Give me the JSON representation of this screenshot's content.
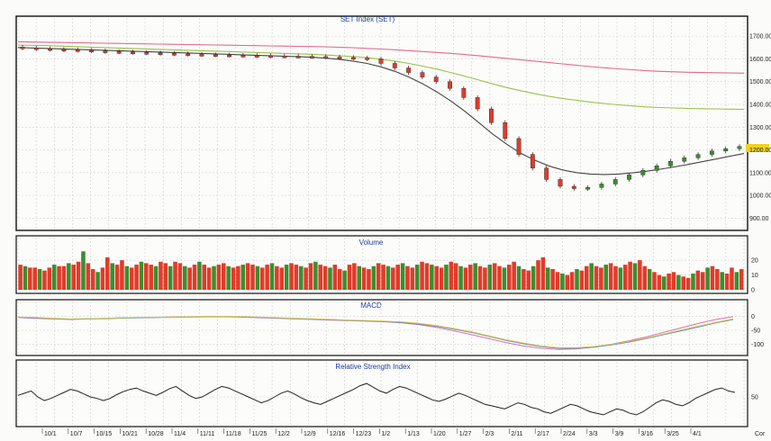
{
  "page": {
    "background": "#fbfbf9"
  },
  "chart_data": [
    {
      "type": "candlestick",
      "title": "SET Index (SET)",
      "y_ticks": [
        "1700.00",
        "1600.00",
        "1500.00",
        "1400.00",
        "1300.00",
        "1200.00",
        "1100.00",
        "1000.00",
        "900.00"
      ],
      "ylim": [
        870,
        1740
      ],
      "grid": true,
      "close_values": [
        1648,
        1645,
        1642,
        1640,
        1638,
        1635,
        1632,
        1630,
        1628,
        1626,
        1624,
        1622,
        1620,
        1618,
        1617,
        1616,
        1615,
        1614,
        1613,
        1612,
        1611,
        1610,
        1608,
        1606,
        1604,
        1600,
        1580,
        1560,
        1540,
        1520,
        1500,
        1470,
        1430,
        1380,
        1320,
        1250,
        1180,
        1120,
        1070,
        1040,
        1030,
        1035,
        1050,
        1070,
        1090,
        1110,
        1130,
        1150,
        1165,
        1180,
        1195,
        1205,
        1215
      ],
      "overlay_series": [
        {
          "color": "#e06a8a",
          "values": [
            1675,
            1674,
            1673,
            1672,
            1671,
            1670,
            1669,
            1668,
            1667,
            1666,
            1665,
            1664,
            1663,
            1662,
            1661,
            1660,
            1659,
            1658,
            1657,
            1656,
            1655,
            1654,
            1653,
            1651,
            1649,
            1646,
            1643,
            1640,
            1636,
            1632,
            1628,
            1624,
            1619,
            1614,
            1608,
            1602,
            1596,
            1590,
            1584,
            1578,
            1572,
            1566,
            1561,
            1556,
            1552,
            1548,
            1545,
            1543,
            1541,
            1540,
            1539,
            1538,
            1537
          ]
        },
        {
          "color": "#9ac24a",
          "values": [
            1660,
            1659,
            1658,
            1656,
            1654,
            1652,
            1650,
            1648,
            1646,
            1644,
            1642,
            1640,
            1638,
            1636,
            1634,
            1632,
            1630,
            1628,
            1626,
            1624,
            1622,
            1620,
            1617,
            1614,
            1610,
            1605,
            1598,
            1590,
            1580,
            1568,
            1555,
            1540,
            1524,
            1507,
            1490,
            1474,
            1460,
            1447,
            1436,
            1426,
            1418,
            1410,
            1404,
            1398,
            1393,
            1389,
            1386,
            1384,
            1382,
            1381,
            1380,
            1379,
            1378
          ]
        },
        {
          "color": "#444444",
          "values": [
            1650,
            1648,
            1646,
            1644,
            1642,
            1640,
            1638,
            1636,
            1634,
            1632,
            1630,
            1628,
            1626,
            1624,
            1622,
            1620,
            1618,
            1616,
            1614,
            1612,
            1610,
            1607,
            1603,
            1598,
            1590,
            1580,
            1565,
            1545,
            1520,
            1490,
            1455,
            1415,
            1370,
            1320,
            1270,
            1225,
            1185,
            1155,
            1130,
            1112,
            1100,
            1094,
            1092,
            1094,
            1099,
            1106,
            1115,
            1125,
            1136,
            1148,
            1160,
            1172,
            1184
          ]
        }
      ]
    },
    {
      "type": "bar",
      "title": "Volume",
      "y_ticks": [
        "20",
        "10",
        "0"
      ],
      "ylim": [
        0,
        28
      ],
      "values": [
        17,
        16,
        15,
        15,
        14,
        13,
        15,
        17,
        16,
        16,
        18,
        17,
        19,
        26,
        18,
        14,
        12,
        15,
        22,
        18,
        17,
        20,
        16,
        15,
        17,
        19,
        18,
        17,
        16,
        19,
        18,
        16,
        19,
        18,
        16,
        15,
        17,
        19,
        17,
        15,
        16,
        17,
        18,
        16,
        15,
        16,
        17,
        18,
        17,
        16,
        15,
        17,
        18,
        16,
        15,
        17,
        18,
        17,
        16,
        15,
        18,
        19,
        17,
        16,
        15,
        17,
        14,
        13,
        17,
        18,
        16,
        15,
        14,
        16,
        18,
        17,
        16,
        15,
        17,
        18,
        16,
        15,
        17,
        19,
        18,
        17,
        16,
        15,
        17,
        19,
        18,
        16,
        15,
        17,
        18,
        16,
        15,
        17,
        18,
        16,
        15,
        17,
        19,
        16,
        14,
        13,
        16,
        20,
        22,
        15,
        14,
        12,
        11,
        10,
        12,
        14,
        13,
        16,
        18,
        16,
        15,
        17,
        18,
        16,
        15,
        17,
        19,
        18,
        20,
        16,
        14,
        12,
        10,
        9,
        11,
        12,
        10,
        9,
        8,
        11,
        13,
        12,
        15,
        16,
        14,
        12,
        11,
        15,
        12,
        14
      ],
      "bar_colors": [
        "#e23b2a",
        "#3a8f2e"
      ]
    },
    {
      "type": "line",
      "title": "MACD",
      "y_ticks": [
        "0",
        "-50",
        "-100"
      ],
      "ylim": [
        -130,
        20
      ],
      "series": [
        {
          "color": "#e070b0",
          "values": [
            -5,
            -8,
            -10,
            -12,
            -10,
            -8,
            -6,
            -5,
            -4,
            -3,
            -2,
            -1,
            -2,
            -4,
            -6,
            -8,
            -10,
            -12,
            -14,
            -16,
            -18,
            -20,
            -24,
            -30,
            -40,
            -52,
            -66,
            -80,
            -94,
            -106,
            -114,
            -118,
            -116,
            -110,
            -100,
            -88,
            -74,
            -58,
            -42,
            -26,
            -12,
            -2
          ]
        },
        {
          "color": "#3a8fd0",
          "values": [
            -4,
            -6,
            -9,
            -11,
            -10,
            -9,
            -7,
            -6,
            -5,
            -4,
            -3,
            -2,
            -2,
            -3,
            -5,
            -7,
            -9,
            -11,
            -13,
            -15,
            -17,
            -19,
            -22,
            -28,
            -36,
            -46,
            -58,
            -72,
            -86,
            -98,
            -108,
            -114,
            -114,
            -110,
            -102,
            -92,
            -80,
            -66,
            -52,
            -38,
            -24,
            -12
          ]
        },
        {
          "color": "#d8c040",
          "values": [
            -3,
            -5,
            -8,
            -10,
            -9,
            -8,
            -6,
            -5,
            -4,
            -3,
            -2,
            -1,
            -1,
            -2,
            -4,
            -6,
            -8,
            -10,
            -12,
            -14,
            -16,
            -18,
            -21,
            -26,
            -34,
            -44,
            -56,
            -70,
            -84,
            -96,
            -106,
            -112,
            -112,
            -108,
            -100,
            -90,
            -78,
            -64,
            -50,
            -36,
            -22,
            -10
          ]
        }
      ]
    },
    {
      "type": "line",
      "title": "Relative Strength Index",
      "y_ticks": [
        "50"
      ],
      "ylim": [
        15,
        85
      ],
      "series": [
        {
          "color": "#222222",
          "values": [
            52,
            55,
            58,
            50,
            45,
            48,
            52,
            56,
            60,
            58,
            54,
            50,
            48,
            45,
            48,
            53,
            57,
            60,
            62,
            58,
            55,
            52,
            56,
            61,
            64,
            58,
            52,
            48,
            50,
            55,
            60,
            64,
            62,
            58,
            54,
            50,
            46,
            42,
            45,
            50,
            55,
            58,
            54,
            49,
            45,
            42,
            40,
            44,
            48,
            52,
            56,
            60,
            65,
            68,
            63,
            58,
            55,
            60,
            64,
            62,
            58,
            54,
            50,
            46,
            44,
            47,
            51,
            55,
            52,
            48,
            44,
            40,
            38,
            36,
            34,
            38,
            42,
            40,
            36,
            34,
            30,
            28,
            32,
            36,
            40,
            38,
            34,
            30,
            28,
            26,
            30,
            34,
            32,
            28,
            26,
            30,
            36,
            42,
            46,
            44,
            40,
            38,
            42,
            48,
            52,
            56,
            60,
            62,
            58,
            56
          ]
        }
      ]
    }
  ],
  "x_axis": {
    "labels": [
      "10/1",
      "10/7",
      "10/15",
      "10/21",
      "10/28",
      "11/4",
      "11/11",
      "11/18",
      "11/25",
      "12/2",
      "12/9",
      "12/16",
      "12/23",
      "1/2",
      "1/13",
      "1/20",
      "1/27",
      "2/3",
      "2/11",
      "2/17",
      "2/24",
      "3/3",
      "3/9",
      "3/16",
      "3/25",
      "4/1"
    ],
    "right_label": "Cor"
  }
}
